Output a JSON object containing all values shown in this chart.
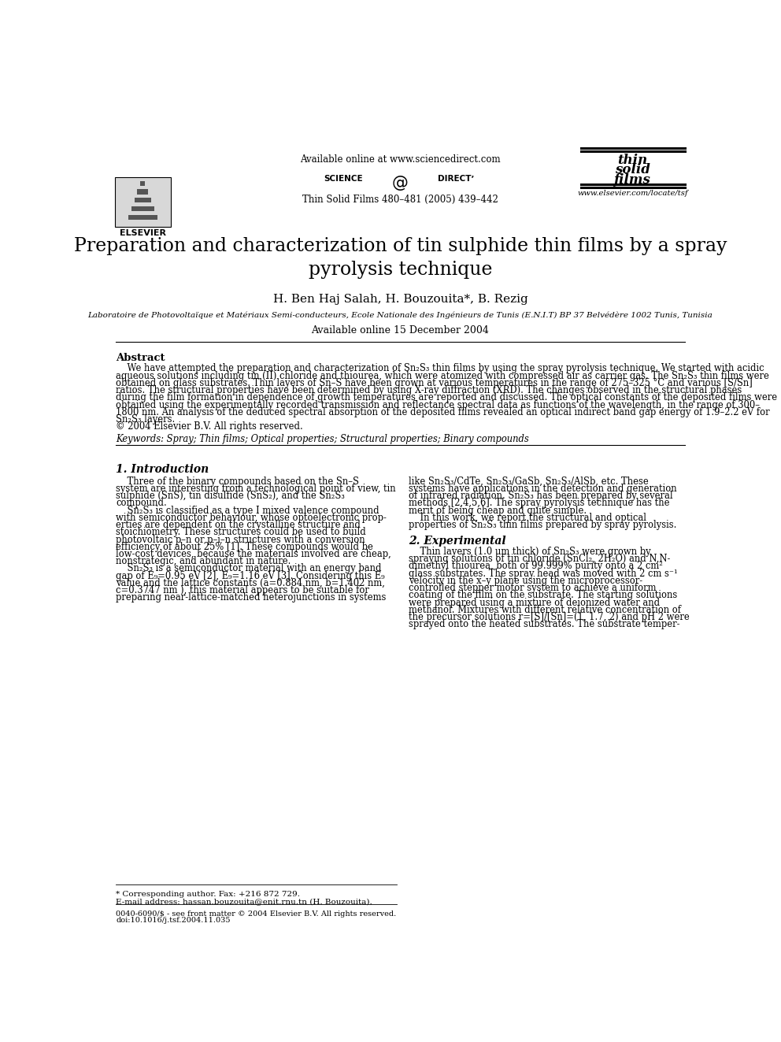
{
  "bg_color": "#ffffff",
  "title": "Preparation and characterization of tin sulphide thin films by a spray\npyrolysis technique",
  "authors": "H. Ben Haj Salah, H. Bouzouita*, B. Rezig",
  "affiliation": "Laboratoire de Photovoltaïque et Matériaux Semi-conducteurs, Ecole Nationale des Ingénieurs de Tunis (E.N.I.T) BP 37 Belvédère 1002 Tunis, Tunisia",
  "available_online_header": "Available online at www.sciencedirect.com",
  "journal_info": "Thin Solid Films 480–481 (2005) 439–442",
  "available_online_date": "Available online 15 December 2004",
  "journal_url": "www.elsevier.com/locate/tsf",
  "elsevier_text": "ELSEVIER",
  "abstract_title": "Abstract",
  "keywords_text": "Keywords: Spray; Thin films; Optical properties; Structural properties; Binary compounds",
  "section1_title": "1. Introduction",
  "section2_title": "2. Experimental",
  "footnote_star": "* Corresponding author. Fax: +216 872 729.",
  "footnote_email": "E-mail address: hassan.bouzouita@enit.rnu.tn (H. Bouzouita).",
  "footnote_copy1": "0040-6090/$ - see front matter © 2004 Elsevier B.V. All rights reserved.",
  "footnote_copy2": "doi:10.1016/j.tsf.2004.11.035",
  "abstract_lines": [
    "    We have attempted the preparation and characterization of Sn₂S₃ thin films by using the spray pyrolysis technique. We started with acidic",
    "aqueous solutions including tin (II) chloride and thiourea, which were atomized with compressed air as carrier gas. The Sn₂S₃ thin films were",
    "obtained on glass substrates. Thin layers of Sn–S have been grown at various temperatures in the range of 275–325 °C and various [S/Sn]",
    "ratios. The structural properties have been determined by using X-ray diffraction (XRD). The changes observed in the structural phases",
    "during the film formation in dependence of growth temperatures are reported and discussed. The optical constants of the deposited films were",
    "obtained using the experimentally recorded transmission and reflectance spectral data as functions of the wavelength, in the range of 300–",
    "1800 nm. An analysis of the deduced spectral absorption of the deposited films revealed an optical indirect band gap energy of 1.9–2.2 eV for",
    "Sn₂S₃ layers.",
    "© 2004 Elsevier B.V. All rights reserved."
  ],
  "col1_lines": [
    "    Three of the binary compounds based on the Sn–S",
    "system are interesting from a technological point of view, tin",
    "sulphide (SnS), tin disulfide (SnS₂), and the Sn₂S₃",
    "compound.",
    "    Sn₂S₃ is classified as a type I mixed valence compound",
    "with semiconductor behaviour, whose optoelectronic prop-",
    "erties are dependent on the crystalline structure and",
    "stoichiometry. These structures could be used to build",
    "photovoltaic p–n or p–i–n structures with a conversion",
    "efficiency of about 25% [1]. These compounds would be",
    "low-cost devices, because the materials involved are cheap,",
    "nonstrategic, and abundant in nature.",
    "    Sn₂S₃ is a semiconductor material with an energy band",
    "gap of E₉=0.95 eV [2], E₉=1.16 eV [3]. Considering this E₉",
    "value and the lattice constants (a=0.884 nm, b=1.402 nm,",
    "c=0.3747 nm ), this material appears to be suitable for",
    "preparing near-lattice-matched heterojunctions in systems"
  ],
  "col2_s1_lines": [
    "like Sn₂S₃/CdTe, Sn₂S₃/GaSb, Sn₂S₃/AlSb, etc. These",
    "systems have applications in the detection and generation",
    "of infrared radiation. Sn₂S₃ has been prepared by several",
    "methods [2,4,5,6]. The spray pyrolysis technique has the",
    "merit of being cheap and quite simple.",
    "    In this work, we report the structural and optical",
    "properties of Sn₂S₃ thin films prepared by spray pyrolysis."
  ],
  "col2_s2_lines": [
    "    Thin layers (1.0 μm thick) of Sn₂S₃ were grown by",
    "spraying solutions of tin chloride (SnCl₂, 2H₂O) and N,N-",
    "dimethyl thiourea, both of 99.999% purity onto a 2 cm²",
    "glass substrates. The spray head was moved with 2 cm s⁻¹",
    "velocity in the x–y plane using the microprocessor-",
    "controlled stepper motor system to achieve a uniform",
    "coating of the film on the substrate. The starting solutions",
    "were prepared using a mixture of deionized water and",
    "methanol. Mixtures with different relative concentration of",
    "the precursor solutions r=[S]/[Sn]=(1, 1.7, 2) and pH 2 were",
    "sprayed onto the heated substrates. The substrate temper-"
  ]
}
